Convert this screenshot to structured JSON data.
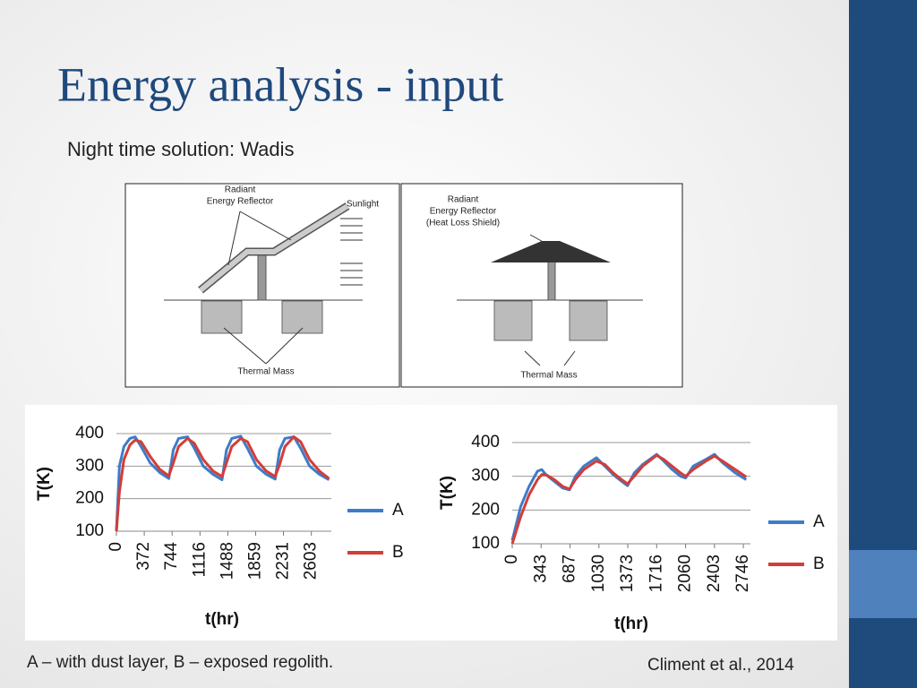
{
  "title": "Energy analysis - input",
  "subtitle": "Night time solution: Wadis",
  "diagrams": [
    {
      "reflector_label": [
        "Radiant",
        "Energy Reflector"
      ],
      "sunlight_label": "Sunlight",
      "mass_label": "Thermal Mass"
    },
    {
      "reflector_label": [
        "Radiant",
        "Energy Reflector",
        "(Heat Loss Shield)"
      ],
      "mass_label": "Thermal Mass"
    }
  ],
  "chart_data": [
    {
      "type": "line",
      "xlabel": "t(hr)",
      "ylabel": "T(K)",
      "x": [
        0,
        40,
        100,
        180,
        250,
        330,
        450,
        580,
        700,
        760,
        830,
        950,
        1040,
        1160,
        1290,
        1410,
        1470,
        1540,
        1660,
        1750,
        1870,
        2000,
        2120,
        2180,
        2250,
        2370,
        2460,
        2580,
        2710,
        2840
      ],
      "xlim": [
        0,
        2870
      ],
      "xticks": [
        0,
        372,
        744,
        1116,
        1488,
        1859,
        2231,
        2603
      ],
      "ylim": [
        100,
        400
      ],
      "yticks": [
        100,
        200,
        300,
        400
      ],
      "grid": true,
      "series": [
        {
          "name": "A",
          "color": "#3d7cc9",
          "values": [
            100,
            300,
            360,
            385,
            390,
            360,
            310,
            280,
            262,
            350,
            385,
            390,
            355,
            300,
            275,
            258,
            350,
            385,
            392,
            355,
            300,
            275,
            260,
            350,
            385,
            390,
            355,
            300,
            275,
            258
          ]
        },
        {
          "name": "B",
          "color": "#d33d38",
          "values": [
            100,
            220,
            320,
            365,
            380,
            375,
            330,
            290,
            270,
            310,
            360,
            385,
            370,
            320,
            285,
            268,
            310,
            360,
            385,
            375,
            320,
            285,
            268,
            305,
            360,
            390,
            375,
            320,
            285,
            262
          ]
        }
      ]
    },
    {
      "type": "line",
      "xlabel": "t(hr)",
      "ylabel": "T(K)",
      "x": [
        0,
        100,
        200,
        300,
        350,
        400,
        500,
        600,
        680,
        750,
        850,
        1000,
        1100,
        1200,
        1300,
        1370,
        1450,
        1550,
        1716,
        1800,
        1900,
        2000,
        2060,
        2150,
        2300,
        2403,
        2500,
        2650,
        2780
      ],
      "xlim": [
        0,
        2830
      ],
      "xticks": [
        0,
        343,
        687,
        1030,
        1373,
        1716,
        2060,
        2403,
        2746
      ],
      "ylim": [
        100,
        400
      ],
      "yticks": [
        100,
        200,
        300,
        400
      ],
      "grid": true,
      "series": [
        {
          "name": "A",
          "color": "#3d7cc9",
          "values": [
            110,
            210,
            270,
            315,
            320,
            305,
            285,
            265,
            260,
            300,
            330,
            355,
            330,
            305,
            285,
            272,
            310,
            335,
            365,
            345,
            320,
            300,
            295,
            330,
            350,
            365,
            340,
            310,
            290
          ]
        },
        {
          "name": "B",
          "color": "#d33d38",
          "values": [
            100,
            180,
            245,
            290,
            305,
            305,
            290,
            270,
            262,
            290,
            320,
            345,
            335,
            310,
            290,
            278,
            300,
            330,
            362,
            350,
            330,
            310,
            300,
            320,
            345,
            360,
            345,
            320,
            298
          ]
        }
      ]
    }
  ],
  "caption": "A – with dust layer, B – exposed regolith.",
  "citation": "Climent et al., 2014"
}
